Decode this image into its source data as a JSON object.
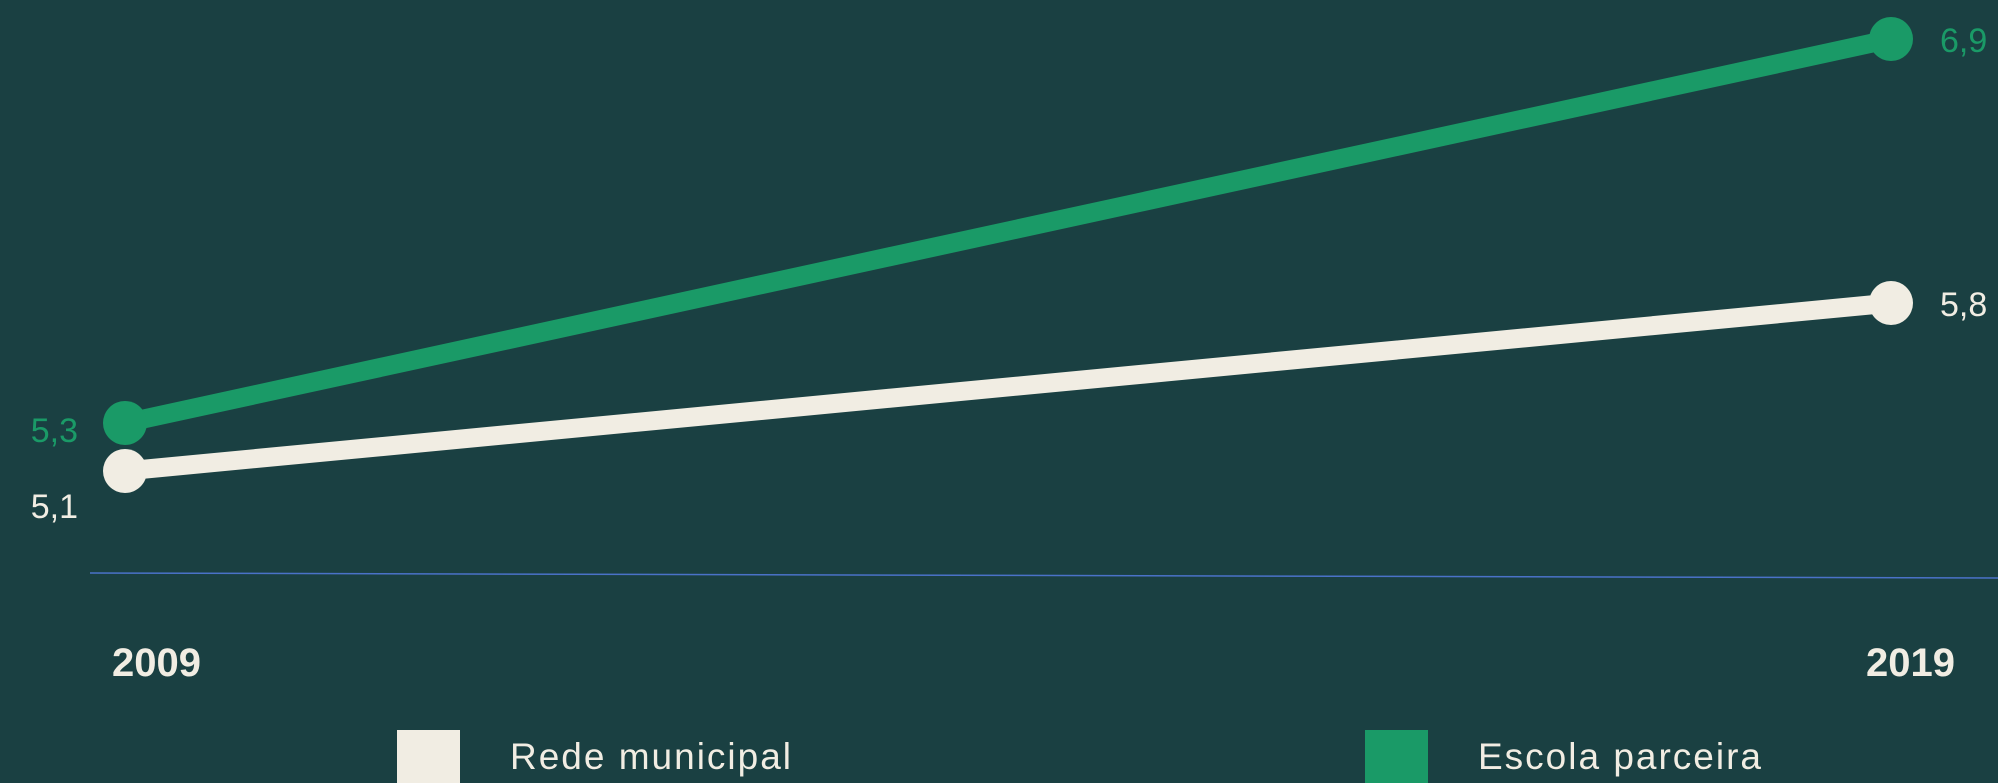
{
  "chart_data": {
    "type": "line",
    "categories": [
      "2009",
      "2019"
    ],
    "series": [
      {
        "name": "Rede municipal",
        "values": [
          5.1,
          5.8
        ],
        "labels": [
          "5,1",
          "5,8"
        ],
        "color": "#f1ede3"
      },
      {
        "name": "Escola parceira",
        "values": [
          5.3,
          6.9
        ],
        "labels": [
          "5,3",
          "6,9"
        ],
        "color": "#1a9a67"
      }
    ],
    "title": "",
    "xlabel": "",
    "ylabel": "",
    "grid": false,
    "legend_position": "bottom",
    "baseline_color": "#4a72c8"
  },
  "colors": {
    "background": "#1a4042",
    "axis_text": "#f1ede3"
  }
}
